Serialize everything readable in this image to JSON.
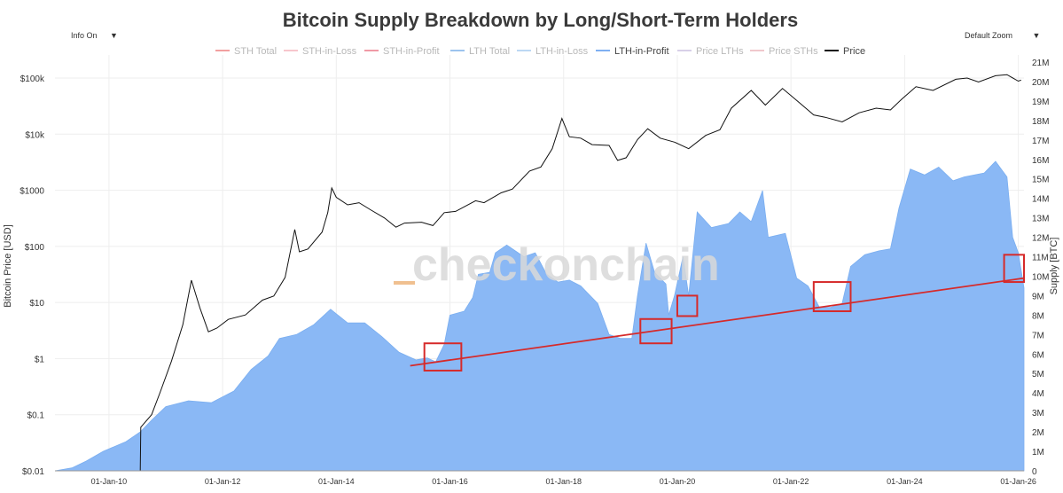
{
  "title": "Bitcoin Supply Breakdown by Long/Short-Term Holders",
  "controls": {
    "info_label": "Info On",
    "zoom_label": "Default Zoom",
    "dropdown_glyph": "▼"
  },
  "watermark": "checkonchain",
  "colors": {
    "area_fill": "#8ab8f5",
    "area_edge": "#7aaef0",
    "price_line": "#111111",
    "trend_line": "#d62a2a",
    "grid": "#eeeeee",
    "legend_faded": "#b8b8b8",
    "legend_active": "#444444"
  },
  "chart_data": {
    "type": "line+area",
    "title": "Bitcoin Supply Breakdown by Long/Short-Term Holders",
    "ylabel_left": "Bitcoin Price [USD]",
    "ylabel_right": "Supply [BTC]",
    "legend": [
      {
        "name": "STH Total",
        "color": "#f2a0a0",
        "active": false
      },
      {
        "name": "STH-in-Loss",
        "color": "#f7c6cc",
        "active": false
      },
      {
        "name": "STH-in-Profit",
        "color": "#f09aa6",
        "active": false
      },
      {
        "name": "LTH Total",
        "color": "#9cc3ee",
        "active": false
      },
      {
        "name": "LTH-in-Loss",
        "color": "#bcd8f3",
        "active": false
      },
      {
        "name": "LTH-in-Profit",
        "color": "#7fb0f2",
        "active": true
      },
      {
        "name": "Price LTHs",
        "color": "#d8d0e8",
        "active": false
      },
      {
        "name": "Price STHs",
        "color": "#f0c8cc",
        "active": false
      },
      {
        "name": "Price",
        "color": "#111111",
        "active": true
      }
    ],
    "x_ticks": [
      {
        "label": "01-Jan-10",
        "year": 2010
      },
      {
        "label": "01-Jan-12",
        "year": 2012
      },
      {
        "label": "01-Jan-14",
        "year": 2014
      },
      {
        "label": "01-Jan-16",
        "year": 2016
      },
      {
        "label": "01-Jan-18",
        "year": 2018
      },
      {
        "label": "01-Jan-20",
        "year": 2020
      },
      {
        "label": "01-Jan-22",
        "year": 2022
      },
      {
        "label": "01-Jan-24",
        "year": 2024
      },
      {
        "label": "01-Jan-26",
        "year": 2026
      }
    ],
    "xlim": [
      2009.05,
      2026.1
    ],
    "y_left_ticks": [
      {
        "label": "$100k",
        "value": 100000
      },
      {
        "label": "$10k",
        "value": 10000
      },
      {
        "label": "$1000",
        "value": 1000
      },
      {
        "label": "$100",
        "value": 100
      },
      {
        "label": "$10",
        "value": 10
      },
      {
        "label": "$1",
        "value": 1
      },
      {
        "label": "$0.1",
        "value": 0.1
      },
      {
        "label": "$0.01",
        "value": 0.01
      }
    ],
    "y_left_range_log": [
      0.01,
      100000
    ],
    "y_right_ticks": [
      "0",
      "1M",
      "2M",
      "3M",
      "4M",
      "5M",
      "6M",
      "7M",
      "8M",
      "9M",
      "10M",
      "11M",
      "12M",
      "13M",
      "14M",
      "15M",
      "16M",
      "17M",
      "18M",
      "19M",
      "20M",
      "21M"
    ],
    "y_right_range": [
      0,
      21000000
    ],
    "price_series": [
      [
        2010.55,
        0.01
      ],
      [
        2010.56,
        0.06
      ],
      [
        2010.75,
        0.1
      ],
      [
        2010.9,
        0.25
      ],
      [
        2011.1,
        0.9
      ],
      [
        2011.3,
        4
      ],
      [
        2011.45,
        25
      ],
      [
        2011.6,
        8
      ],
      [
        2011.75,
        3
      ],
      [
        2011.9,
        3.5
      ],
      [
        2012.1,
        5
      ],
      [
        2012.4,
        6
      ],
      [
        2012.7,
        11
      ],
      [
        2012.9,
        13
      ],
      [
        2013.1,
        28
      ],
      [
        2013.27,
        200
      ],
      [
        2013.35,
        80
      ],
      [
        2013.5,
        90
      ],
      [
        2013.75,
        180
      ],
      [
        2013.85,
        400
      ],
      [
        2013.92,
        1100
      ],
      [
        2014.0,
        750
      ],
      [
        2014.2,
        550
      ],
      [
        2014.4,
        600
      ],
      [
        2014.6,
        450
      ],
      [
        2014.85,
        320
      ],
      [
        2015.05,
        220
      ],
      [
        2015.2,
        260
      ],
      [
        2015.5,
        270
      ],
      [
        2015.7,
        235
      ],
      [
        2015.9,
        400
      ],
      [
        2016.1,
        420
      ],
      [
        2016.45,
        650
      ],
      [
        2016.6,
        600
      ],
      [
        2016.9,
        900
      ],
      [
        2017.1,
        1050
      ],
      [
        2017.4,
        2200
      ],
      [
        2017.6,
        2600
      ],
      [
        2017.8,
        5500
      ],
      [
        2017.97,
        19000
      ],
      [
        2018.1,
        9000
      ],
      [
        2018.3,
        8500
      ],
      [
        2018.5,
        6500
      ],
      [
        2018.8,
        6300
      ],
      [
        2018.95,
        3400
      ],
      [
        2019.1,
        3800
      ],
      [
        2019.3,
        8000
      ],
      [
        2019.48,
        12500
      ],
      [
        2019.7,
        8500
      ],
      [
        2019.95,
        7200
      ],
      [
        2020.2,
        5500
      ],
      [
        2020.5,
        9500
      ],
      [
        2020.75,
        12000
      ],
      [
        2020.95,
        29000
      ],
      [
        2021.3,
        60000
      ],
      [
        2021.55,
        33000
      ],
      [
        2021.85,
        65000
      ],
      [
        2022.1,
        40000
      ],
      [
        2022.4,
        22000
      ],
      [
        2022.6,
        20000
      ],
      [
        2022.9,
        16500
      ],
      [
        2023.2,
        24000
      ],
      [
        2023.5,
        29000
      ],
      [
        2023.75,
        27000
      ],
      [
        2023.95,
        42000
      ],
      [
        2024.2,
        70000
      ],
      [
        2024.5,
        60000
      ],
      [
        2024.9,
        95000
      ],
      [
        2025.1,
        100000
      ],
      [
        2025.3,
        85000
      ],
      [
        2025.6,
        110000
      ],
      [
        2025.8,
        115000
      ],
      [
        2026.0,
        88000
      ],
      [
        2026.05,
        92000
      ]
    ],
    "lth_in_profit_series": [
      [
        2009.05,
        0
      ],
      [
        2009.35,
        0.15
      ],
      [
        2009.6,
        0.5
      ],
      [
        2009.9,
        1.0
      ],
      [
        2010.3,
        1.5
      ],
      [
        2010.55,
        2.0
      ],
      [
        2010.75,
        2.6
      ],
      [
        2011.0,
        3.3
      ],
      [
        2011.4,
        3.6
      ],
      [
        2011.8,
        3.5
      ],
      [
        2012.2,
        4.1
      ],
      [
        2012.5,
        5.2
      ],
      [
        2012.8,
        5.9
      ],
      [
        2013.0,
        6.8
      ],
      [
        2013.3,
        7.0
      ],
      [
        2013.6,
        7.5
      ],
      [
        2013.9,
        8.3
      ],
      [
        2014.2,
        7.6
      ],
      [
        2014.5,
        7.6
      ],
      [
        2014.8,
        6.9
      ],
      [
        2015.1,
        6.1
      ],
      [
        2015.4,
        5.7
      ],
      [
        2015.6,
        5.8
      ],
      [
        2015.75,
        5.6
      ],
      [
        2015.9,
        6.5
      ],
      [
        2016.0,
        8.0
      ],
      [
        2016.25,
        8.2
      ],
      [
        2016.4,
        8.9
      ],
      [
        2016.5,
        10.1
      ],
      [
        2016.7,
        10.2
      ],
      [
        2016.8,
        11.2
      ],
      [
        2017.0,
        11.6
      ],
      [
        2017.3,
        11.0
      ],
      [
        2017.5,
        11.2
      ],
      [
        2017.7,
        10.1
      ],
      [
        2017.9,
        9.7
      ],
      [
        2018.1,
        9.8
      ],
      [
        2018.3,
        9.5
      ],
      [
        2018.6,
        8.6
      ],
      [
        2018.8,
        7.0
      ],
      [
        2019.0,
        6.8
      ],
      [
        2019.2,
        6.8
      ],
      [
        2019.3,
        9.0
      ],
      [
        2019.45,
        11.7
      ],
      [
        2019.6,
        10.2
      ],
      [
        2019.8,
        9.6
      ],
      [
        2019.85,
        8.0
      ],
      [
        2019.95,
        9.0
      ],
      [
        2020.1,
        11.0
      ],
      [
        2020.2,
        9.0
      ],
      [
        2020.35,
        13.3
      ],
      [
        2020.6,
        12.5
      ],
      [
        2020.9,
        12.7
      ],
      [
        2021.1,
        13.3
      ],
      [
        2021.3,
        12.8
      ],
      [
        2021.5,
        14.4
      ],
      [
        2021.6,
        12.0
      ],
      [
        2021.9,
        12.2
      ],
      [
        2022.1,
        9.9
      ],
      [
        2022.3,
        9.5
      ],
      [
        2022.5,
        8.4
      ],
      [
        2022.7,
        8.4
      ],
      [
        2022.9,
        8.6
      ],
      [
        2023.05,
        10.5
      ],
      [
        2023.3,
        11.1
      ],
      [
        2023.55,
        11.3
      ],
      [
        2023.75,
        11.4
      ],
      [
        2023.9,
        13.5
      ],
      [
        2024.1,
        15.5
      ],
      [
        2024.35,
        15.2
      ],
      [
        2024.6,
        15.6
      ],
      [
        2024.85,
        14.9
      ],
      [
        2025.05,
        15.1
      ],
      [
        2025.4,
        15.3
      ],
      [
        2025.6,
        15.9
      ],
      [
        2025.8,
        15.1
      ],
      [
        2025.9,
        12.0
      ],
      [
        2026.0,
        11.2
      ],
      [
        2026.1,
        9.4
      ]
    ],
    "trend_line": [
      [
        2015.3,
        5.4
      ],
      [
        2026.1,
        9.9
      ]
    ],
    "highlight_boxes": [
      {
        "x0": 2015.55,
        "x1": 2016.2,
        "y0": 5.15,
        "y1": 6.55
      },
      {
        "x0": 2019.35,
        "x1": 2019.9,
        "y0": 6.55,
        "y1": 7.8
      },
      {
        "x0": 2020.0,
        "x1": 2020.35,
        "y0": 7.95,
        "y1": 9.0
      },
      {
        "x0": 2022.4,
        "x1": 2023.05,
        "y0": 8.2,
        "y1": 9.7
      },
      {
        "x0": 2025.75,
        "x1": 2026.1,
        "y0": 9.7,
        "y1": 11.1
      }
    ]
  }
}
